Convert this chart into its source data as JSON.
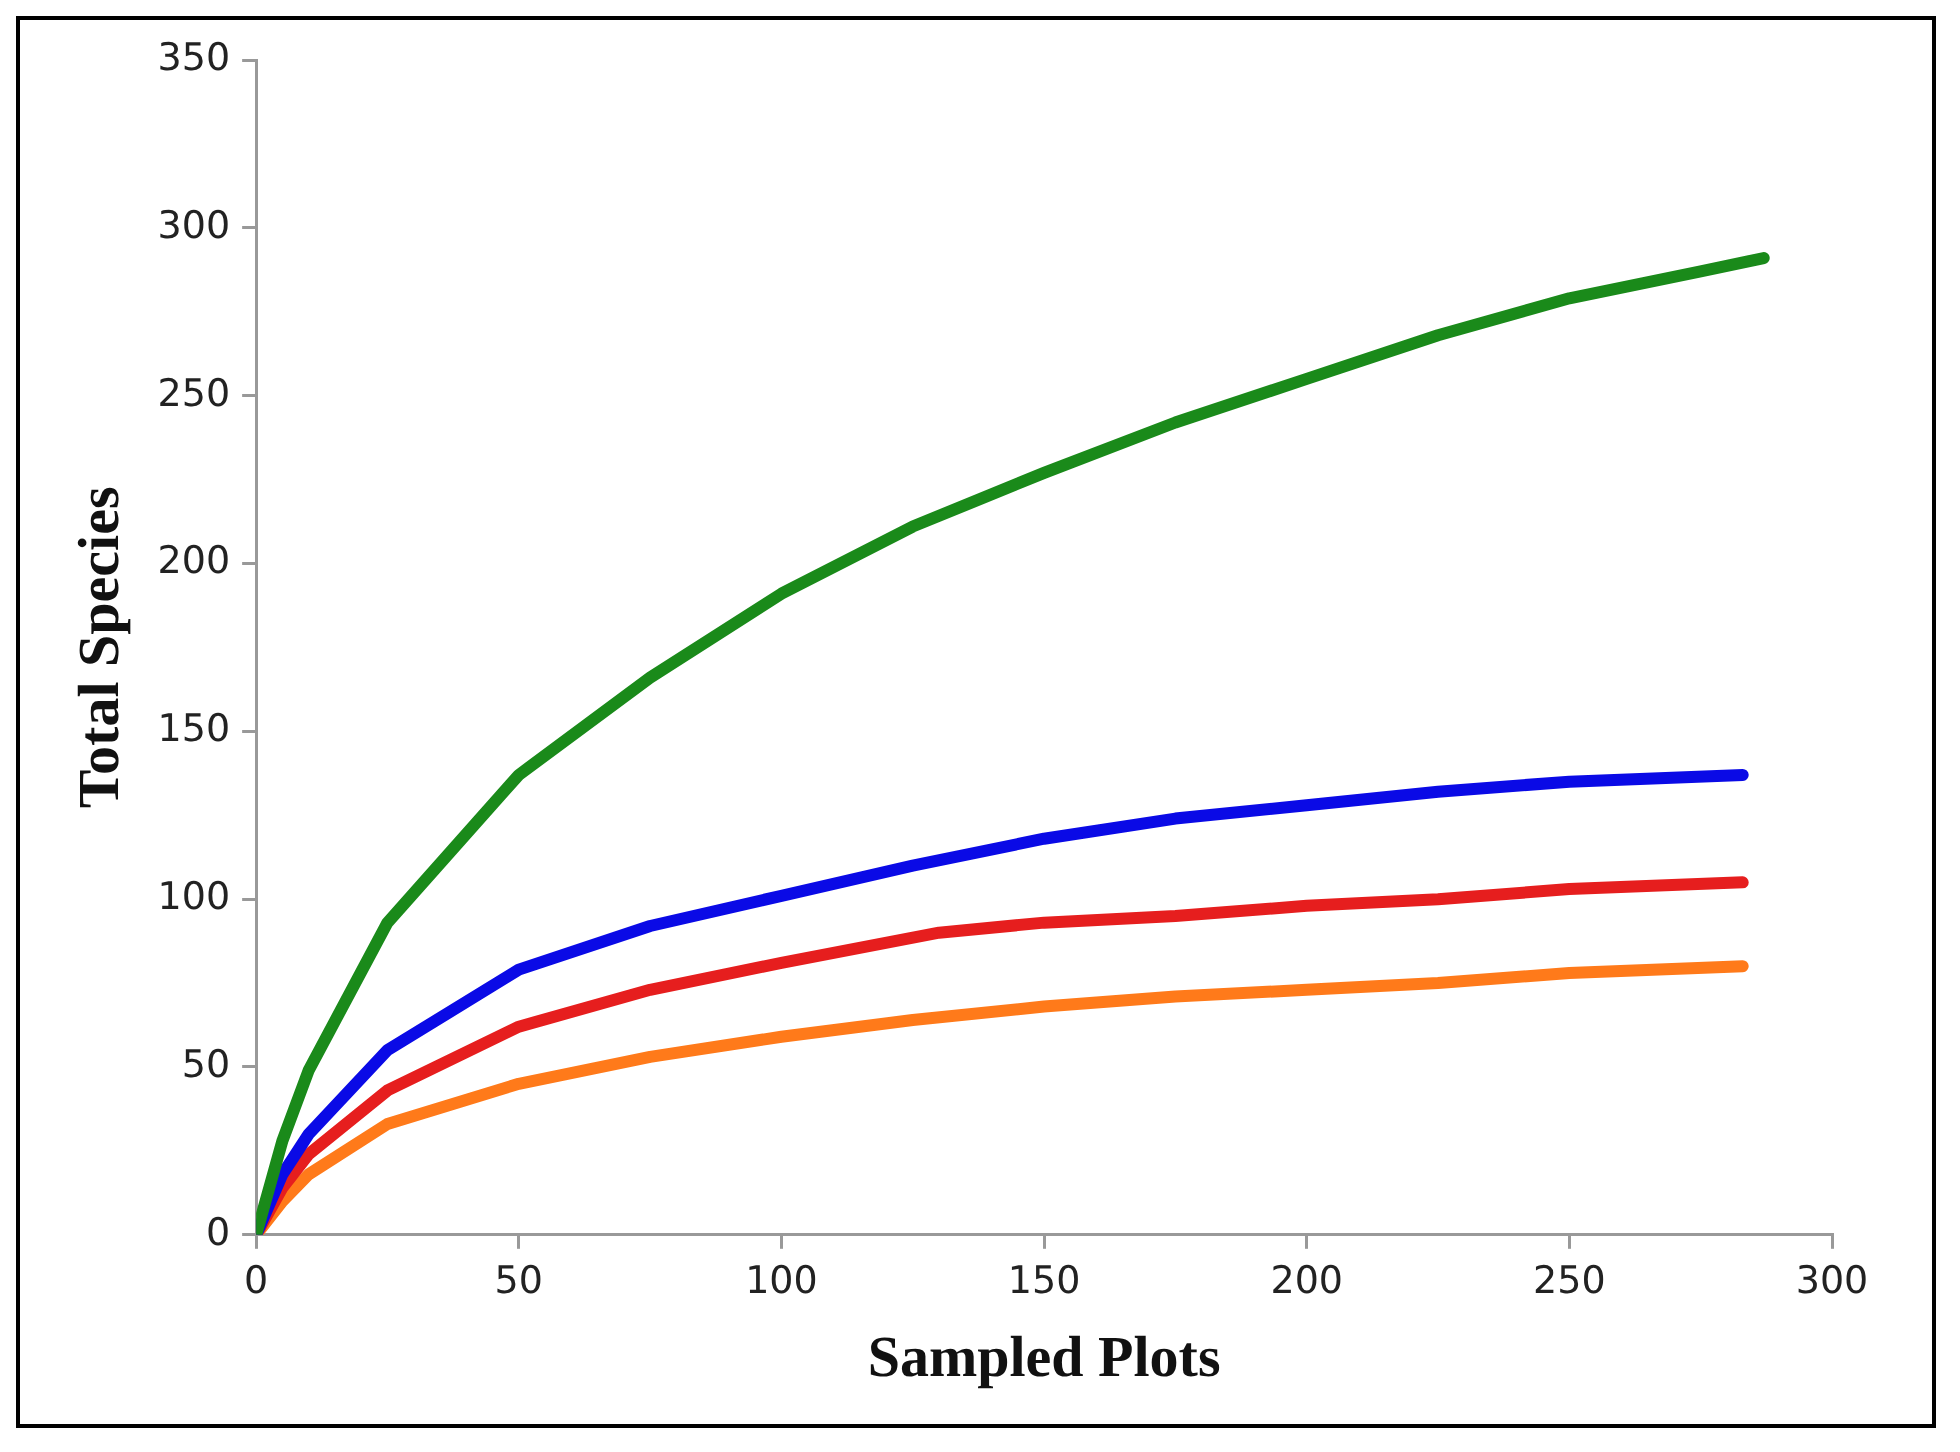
{
  "chart_data": {
    "type": "line",
    "xlabel": "Sampled Plots",
    "ylabel": "Total Species",
    "xlim": [
      0,
      300
    ],
    "xticks": [
      0,
      50,
      100,
      150,
      200,
      250,
      300
    ],
    "ylim": [
      0,
      350
    ],
    "yticks": [
      0,
      50,
      100,
      150,
      200,
      250,
      300,
      350
    ],
    "marker": "none",
    "line_style": "solid",
    "series": [
      {
        "color": "#1a8a1a",
        "x": [
          0,
          5,
          10,
          25,
          50,
          75,
          100,
          125,
          150,
          175,
          200,
          225,
          250,
          275,
          287
        ],
        "values": [
          0,
          28,
          49,
          93,
          137,
          166,
          191,
          211,
          227,
          242,
          255,
          268,
          279,
          287,
          291
        ]
      },
      {
        "color": "#0a0ae6",
        "x": [
          0,
          5,
          10,
          25,
          50,
          75,
          100,
          125,
          150,
          175,
          200,
          225,
          250,
          283
        ],
        "values": [
          0,
          18,
          30,
          55,
          79,
          92,
          101,
          110,
          118,
          124,
          128,
          132,
          135,
          137
        ]
      },
      {
        "color": "#e61e1e",
        "x": [
          0,
          5,
          10,
          25,
          50,
          75,
          100,
          130,
          150,
          175,
          200,
          225,
          250,
          283
        ],
        "values": [
          0,
          14,
          24,
          43,
          62,
          73,
          81,
          90,
          93,
          95,
          98,
          100,
          103,
          105
        ]
      },
      {
        "color": "#ff7a1a",
        "x": [
          0,
          5,
          10,
          25,
          50,
          75,
          100,
          125,
          150,
          175,
          200,
          225,
          250,
          283
        ],
        "values": [
          0,
          10,
          18,
          33,
          45,
          53,
          59,
          64,
          68,
          71,
          73,
          75,
          78,
          80
        ]
      }
    ]
  }
}
